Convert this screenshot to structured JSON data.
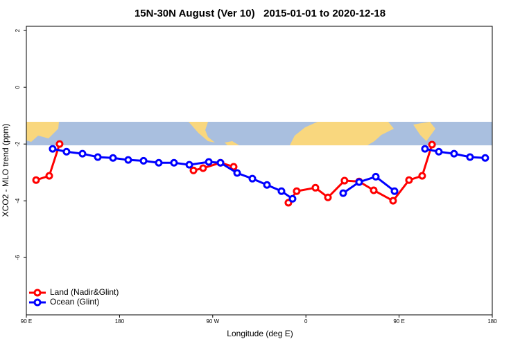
{
  "chart_data": {
    "type": "line",
    "title": "15N-30N August (Ver 10)   2015-01-01 to 2020-12-18",
    "x_label": "Longitude (deg E)",
    "y_label": "XCO2 - MLO trend (ppm)",
    "xlim": [
      90,
      540
    ],
    "xticks": [
      {
        "value": 90,
        "label": "90 E"
      },
      {
        "value": 180,
        "label": "180"
      },
      {
        "value": 270,
        "label": "90 W"
      },
      {
        "value": 360,
        "label": "0"
      },
      {
        "value": 450,
        "label": "90 E"
      },
      {
        "value": 540,
        "label": "180"
      }
    ],
    "ylim": [
      -8.02,
      2.15
    ],
    "yticks": [
      2,
      0,
      -2,
      -4,
      -6
    ],
    "legend": "bottom-left",
    "series": [
      {
        "name": "Land (Nadir&Glint)",
        "color": "#ff0000",
        "x": [
          99.4,
          112.1,
          122.1,
          null,
          251.4,
          260.7,
          277.5,
          290.2,
          null,
          343.1,
          351.1,
          369.2,
          381.3,
          397.3,
          411.4,
          425.5,
          444.2,
          459.6,
          472.3,
          481.8
        ],
        "values": [
          -3.27,
          -3.12,
          -2.0,
          null,
          -2.93,
          -2.85,
          -2.66,
          -2.8,
          null,
          -4.07,
          -3.66,
          -3.54,
          -3.88,
          -3.29,
          -3.32,
          -3.63,
          -4.0,
          -3.27,
          -3.12,
          -2.02
        ]
      },
      {
        "name": "Ocean (Glint)",
        "color": "#0000ff",
        "x": [
          115.4,
          128.8,
          144.2,
          159,
          173.7,
          188.4,
          203.2,
          217.9,
          232.6,
          247.4,
          266.2,
          277.5,
          293.6,
          308.3,
          322.4,
          336.4,
          347.1,
          null,
          396,
          411.4,
          427.5,
          445.6,
          null,
          475,
          488.4,
          503.1,
          518.5,
          533.2
        ],
        "values": [
          -2.17,
          -2.27,
          -2.34,
          -2.46,
          -2.49,
          -2.56,
          -2.59,
          -2.66,
          -2.66,
          -2.73,
          -2.63,
          -2.66,
          -3.02,
          -3.22,
          -3.44,
          -3.66,
          -3.93,
          null,
          -3.73,
          -3.34,
          -3.15,
          -3.66,
          null,
          -2.17,
          -2.27,
          -2.34,
          -2.46,
          -2.49
        ]
      }
    ]
  }
}
